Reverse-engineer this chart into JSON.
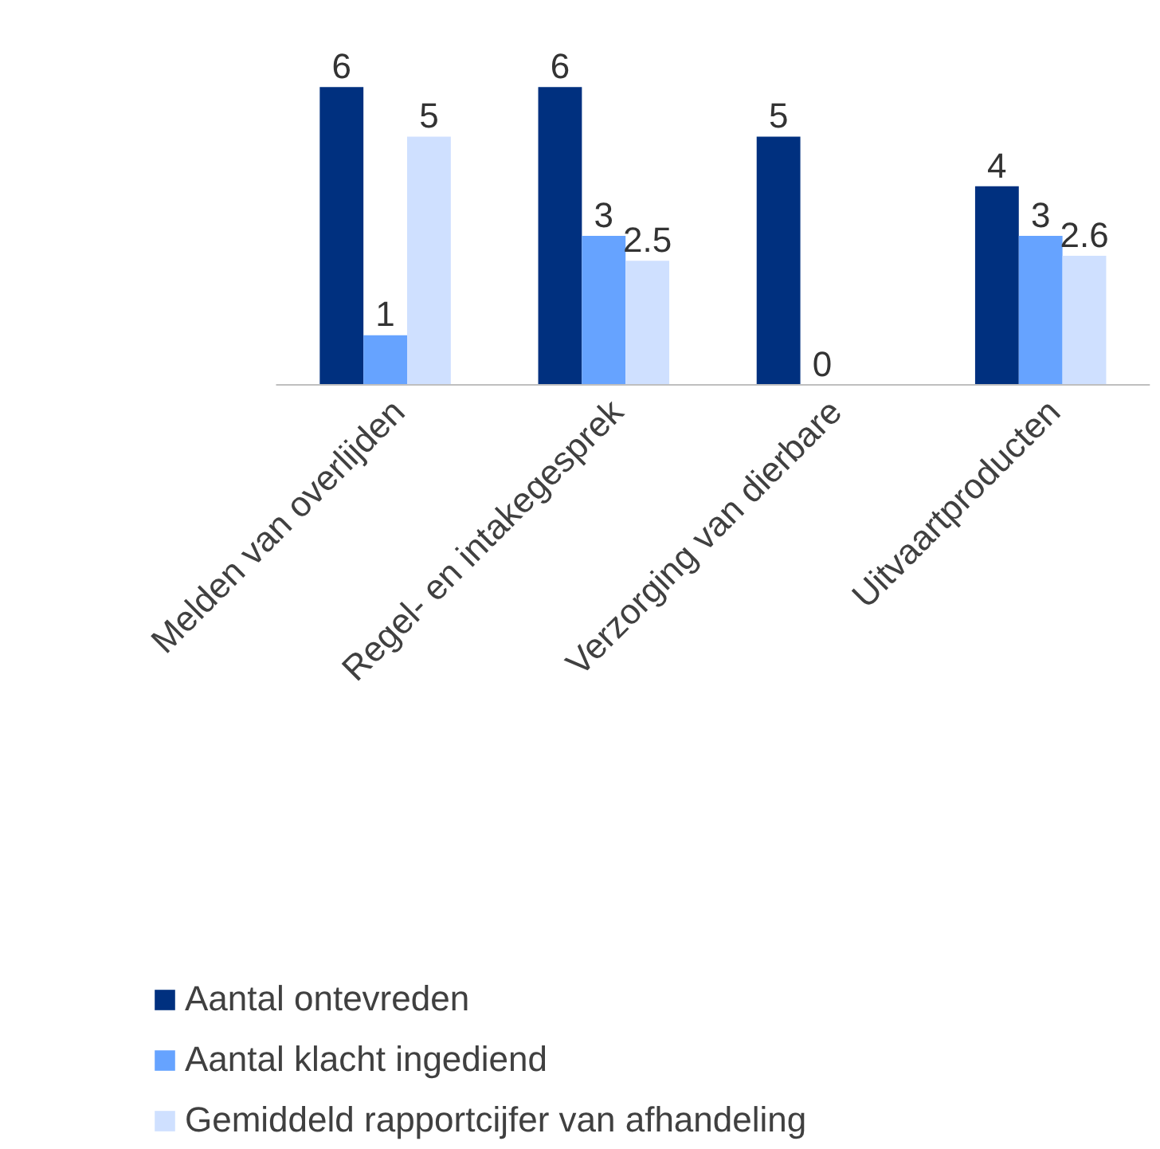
{
  "chart_data": {
    "type": "bar",
    "categories": [
      "Melden van overlijden",
      "Regel- en intakegesprek",
      "Verzorging van dierbare",
      "Uitvaartproducten"
    ],
    "series": [
      {
        "name": "Aantal ontevreden",
        "color": "#00307f",
        "values": [
          6,
          6,
          5,
          4
        ]
      },
      {
        "name": "Aantal klacht ingediend",
        "color": "#66a3ff",
        "values": [
          1,
          3,
          0,
          3
        ]
      },
      {
        "name": "Gemiddeld rapportcijfer van afhandeling",
        "color": "#cfe0ff",
        "values": [
          5,
          2.5,
          null,
          2.6
        ]
      }
    ],
    "data_labels": true,
    "legend": "bottom",
    "grid": false
  }
}
